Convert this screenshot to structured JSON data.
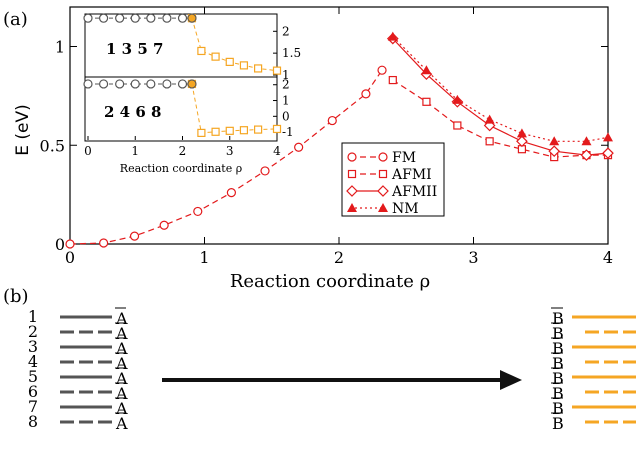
{
  "panel_labels": {
    "a": "(a)",
    "b": "(b)"
  },
  "colors": {
    "red": "#e31a1c",
    "orange": "#f5a623",
    "dark": "#555555",
    "black": "#111111"
  },
  "chart_data": [
    {
      "type": "line",
      "xlabel": "Reaction coordinate ρ",
      "ylabel": "E (eV)",
      "xlim": [
        0,
        4
      ],
      "ylim": [
        0,
        1.2
      ],
      "xticks": [
        "0",
        "1",
        "2",
        "3",
        "4"
      ],
      "yticks": [
        "0",
        "0.5",
        "1"
      ],
      "legend_placement": "center-right",
      "series": [
        {
          "name": "FM",
          "marker": "circle-open",
          "line": "dashed",
          "x": [
            0,
            0.25,
            0.48,
            0.7,
            0.95,
            1.2,
            1.45,
            1.7,
            1.95,
            2.2,
            2.32
          ],
          "y": [
            0,
            0.005,
            0.04,
            0.095,
            0.165,
            0.26,
            0.37,
            0.49,
            0.625,
            0.76,
            0.88
          ]
        },
        {
          "name": "AFMI",
          "marker": "square-open",
          "line": "dashed",
          "x": [
            2.4,
            2.65,
            2.88,
            3.12,
            3.36,
            3.6,
            3.84,
            4.0
          ],
          "y": [
            0.83,
            0.72,
            0.6,
            0.52,
            0.48,
            0.44,
            0.45,
            0.45
          ]
        },
        {
          "name": "AFMII",
          "marker": "diamond-open",
          "line": "solid",
          "x": [
            2.4,
            2.65,
            2.88,
            3.12,
            3.36,
            3.6,
            3.84,
            4.0
          ],
          "y": [
            1.04,
            0.86,
            0.72,
            0.6,
            0.52,
            0.47,
            0.45,
            0.46
          ]
        },
        {
          "name": "NM",
          "marker": "triangle-filled",
          "line": "dotted",
          "x": [
            2.4,
            2.65,
            2.88,
            3.12,
            3.36,
            3.6,
            3.84,
            4.0
          ],
          "y": [
            1.05,
            0.88,
            0.73,
            0.63,
            0.56,
            0.52,
            0.52,
            0.54
          ]
        }
      ]
    },
    {
      "type": "line",
      "title": "1 3 5 7",
      "xlim": [
        0,
        4
      ],
      "ylim": [
        1,
        2.35
      ],
      "yticks": [
        "1",
        "1.5",
        "2"
      ],
      "series": [
        {
          "name": "",
          "color": "#555555",
          "marker": "circle-open",
          "x": [
            0,
            0.33,
            0.67,
            1.0,
            1.33,
            1.67,
            2.0,
            2.2
          ],
          "y": [
            2.3,
            2.3,
            2.3,
            2.3,
            2.3,
            2.3,
            2.3,
            2.3
          ]
        },
        {
          "name": "",
          "color": "#f5a623",
          "marker": "square-open",
          "x": [
            2.2,
            2.4,
            2.7,
            3.0,
            3.3,
            3.6,
            4.0
          ],
          "y": [
            2.3,
            1.55,
            1.42,
            1.3,
            1.22,
            1.15,
            1.1
          ]
        }
      ]
    },
    {
      "type": "line",
      "title": "2 4 6 8",
      "xlim": [
        0,
        4
      ],
      "ylim": [
        -1.5,
        2.3
      ],
      "xticks": [
        "0",
        "1",
        "2",
        "3",
        "4"
      ],
      "yticks": [
        "-1",
        "0",
        "1",
        "2"
      ],
      "xlabel": "Reaction coordinate ρ",
      "series": [
        {
          "name": "",
          "color": "#555555",
          "marker": "circle-open",
          "x": [
            0,
            0.33,
            0.67,
            1.0,
            1.33,
            1.67,
            2.0,
            2.2
          ],
          "y": [
            2.05,
            2.05,
            2.05,
            2.05,
            2.05,
            2.05,
            2.05,
            2.05
          ]
        },
        {
          "name": "",
          "color": "#f5a623",
          "marker": "square-open",
          "x": [
            2.2,
            2.4,
            2.7,
            3.0,
            3.3,
            3.6,
            4.0
          ],
          "y": [
            2.05,
            -1.05,
            -0.98,
            -0.92,
            -0.88,
            -0.84,
            -0.8
          ]
        }
      ]
    }
  ],
  "panel_b": {
    "left_numbers": [
      "1",
      "2",
      "3",
      "4",
      "5",
      "6",
      "7",
      "8"
    ],
    "left_label": "A",
    "right_label": "B",
    "pattern": [
      "solid",
      "dashed",
      "solid",
      "dashed",
      "solid",
      "dashed",
      "solid",
      "dashed"
    ]
  }
}
